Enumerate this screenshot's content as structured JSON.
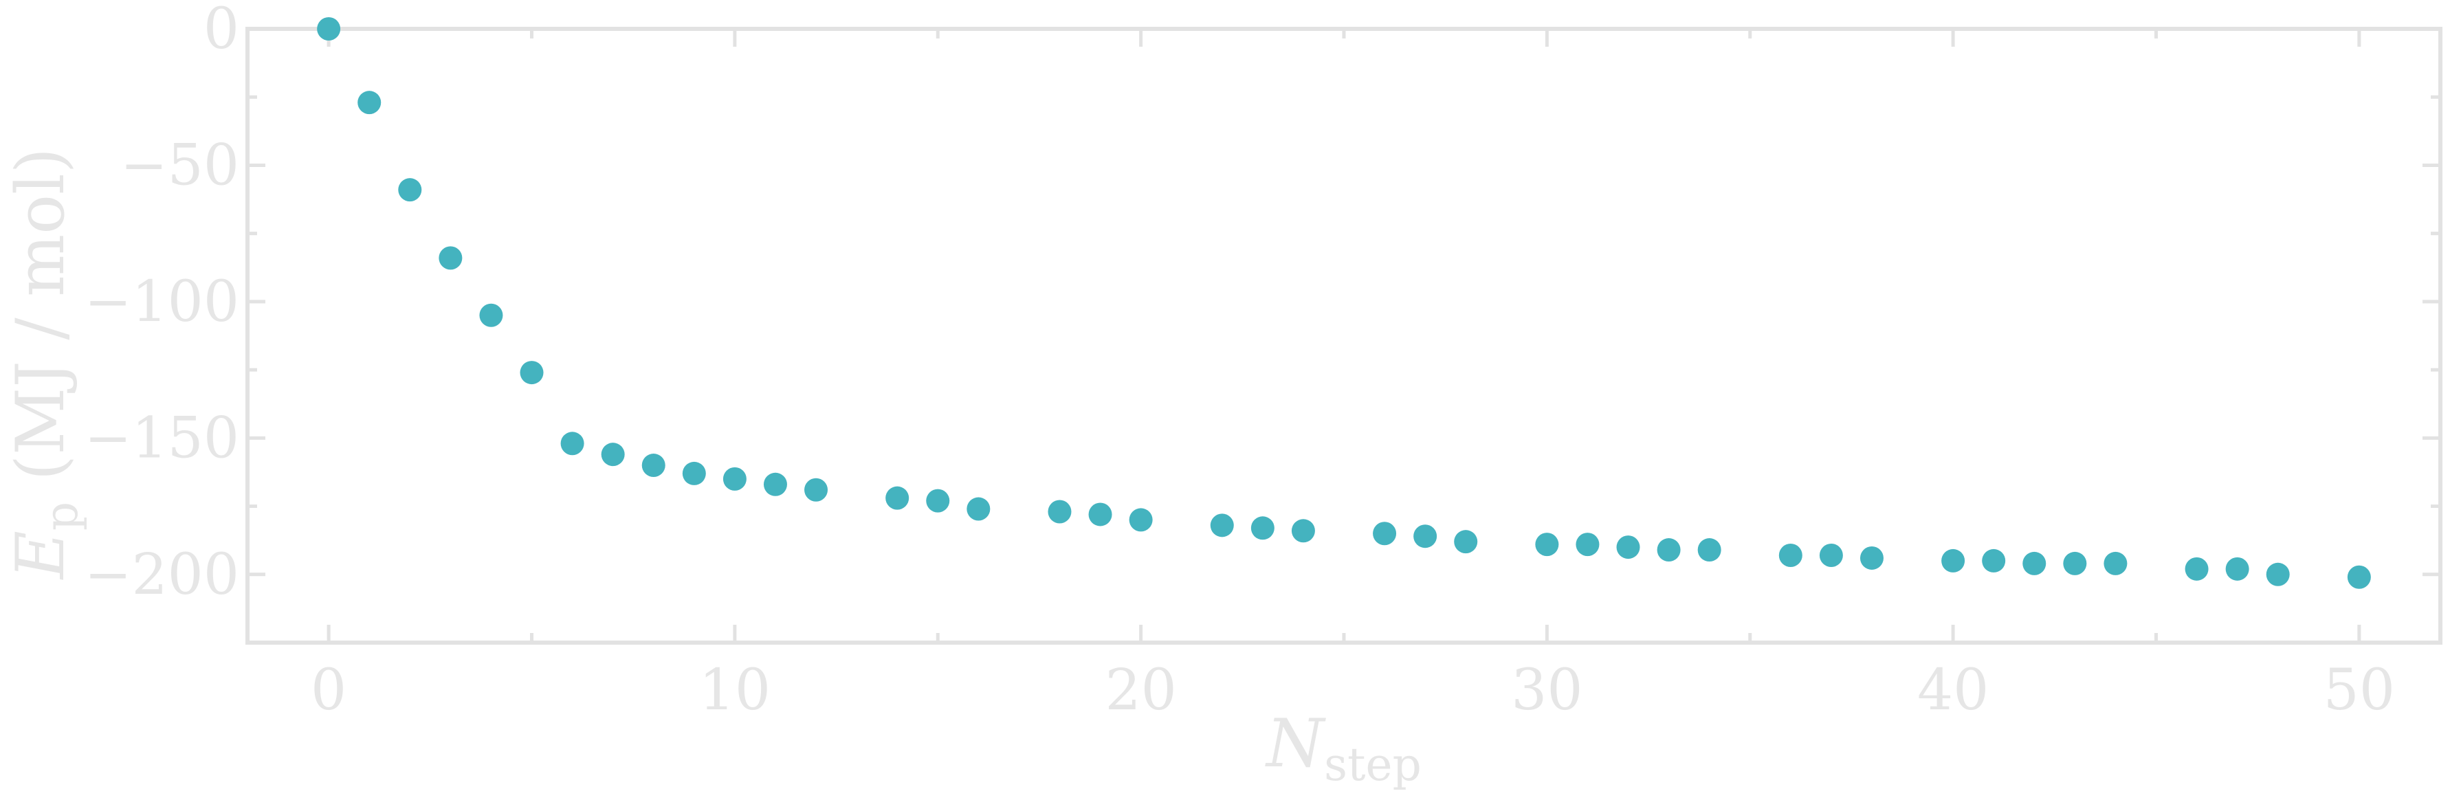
{
  "chart_data": {
    "type": "scatter",
    "xlabel": {
      "main": "N",
      "sub": "step"
    },
    "ylabel": {
      "main": "E",
      "sub": "p",
      "unit": " (MJ / mol)"
    },
    "xlim": [
      -2,
      52
    ],
    "ylim": [
      -225,
      0
    ],
    "xticks": [
      0,
      10,
      20,
      30,
      40,
      50
    ],
    "yticks": [
      0,
      -50,
      -100,
      -150,
      -200
    ],
    "grid": false,
    "marker_color": "#44b3bf",
    "axis_color": "#e2e2e2",
    "series": [
      {
        "x": [
          0,
          1,
          2,
          3,
          4,
          5,
          6,
          7,
          8,
          9,
          10,
          11,
          12,
          14,
          15,
          16,
          18,
          19,
          20,
          22,
          23,
          24,
          26,
          27,
          28,
          30,
          31,
          32,
          33,
          34,
          36,
          37,
          38,
          40,
          41,
          42,
          43,
          44,
          46,
          47,
          48,
          50
        ],
        "y": [
          0,
          -27,
          -59,
          -84,
          -105,
          -126,
          -152,
          -156,
          -160,
          -163,
          -165,
          -167,
          -169,
          -172,
          -173,
          -176,
          -177,
          -178,
          -180,
          -182,
          -183,
          -184,
          -185,
          -186,
          -188,
          -189,
          -189,
          -190,
          -191,
          -191,
          -193,
          -193,
          -194,
          -195,
          -195,
          -196,
          -196,
          -196,
          -198,
          -198,
          -200,
          -201
        ]
      }
    ]
  }
}
